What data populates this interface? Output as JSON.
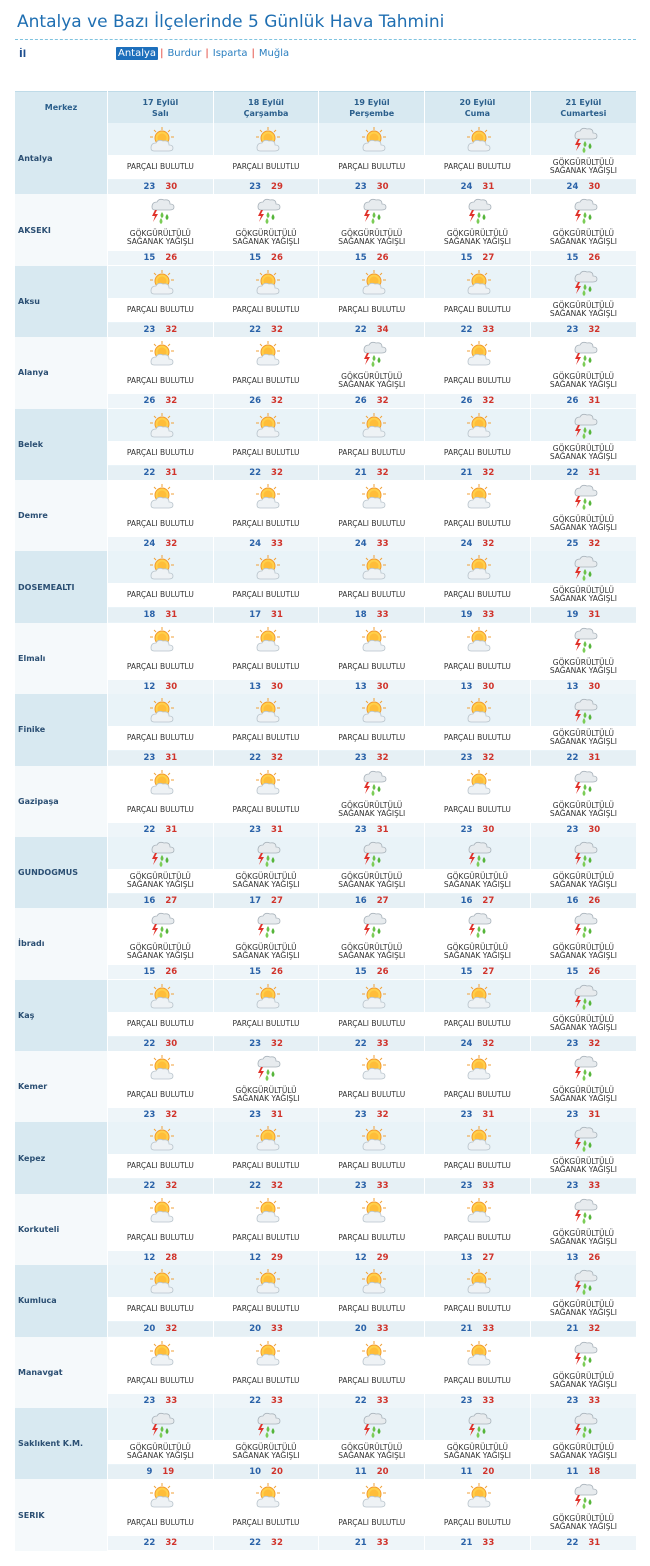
{
  "title": "Antalya ve Bazı İlçelerinde 5 Günlük Hava Tahmini",
  "il_label": "İl",
  "provinces": [
    "Antalya",
    "Burdur",
    "Isparta",
    "Muğla"
  ],
  "active_province": "Antalya",
  "colors": {
    "accent": "#1d6fbc",
    "min_temp": "#2a62a8",
    "max_temp": "#d0332b",
    "header_bg": "#d8e9f1"
  },
  "header": {
    "merkez": "Merkez",
    "days": [
      {
        "date": "17 Eylül",
        "weekday": "Salı"
      },
      {
        "date": "18 Eylül",
        "weekday": "Çarşamba"
      },
      {
        "date": "19 Eylül",
        "weekday": "Perşembe"
      },
      {
        "date": "20 Eylül",
        "weekday": "Cuma"
      },
      {
        "date": "21 Eylül",
        "weekday": "Cumartesi"
      }
    ]
  },
  "conditions": {
    "pb": {
      "icon": "partly-cloudy-icon",
      "lines": [
        "PARÇALI BULUTLU"
      ]
    },
    "gs": {
      "icon": "thunder-shower-icon",
      "lines": [
        "GÖKGÜRÜLTÜLÜ",
        "SAĞANAK YAĞIŞLI"
      ]
    }
  },
  "rows": [
    {
      "city": "Antalya",
      "days": [
        [
          "pb",
          23,
          30
        ],
        [
          "pb",
          23,
          29
        ],
        [
          "pb",
          23,
          30
        ],
        [
          "pb",
          24,
          31
        ],
        [
          "gs",
          24,
          30
        ]
      ]
    },
    {
      "city": "AKSEKI",
      "days": [
        [
          "gs",
          15,
          26
        ],
        [
          "gs",
          15,
          26
        ],
        [
          "gs",
          15,
          26
        ],
        [
          "gs",
          15,
          27
        ],
        [
          "gs",
          15,
          26
        ]
      ]
    },
    {
      "city": "Aksu",
      "days": [
        [
          "pb",
          23,
          32
        ],
        [
          "pb",
          22,
          32
        ],
        [
          "pb",
          22,
          34
        ],
        [
          "pb",
          22,
          33
        ],
        [
          "gs",
          23,
          32
        ]
      ]
    },
    {
      "city": "Alanya",
      "days": [
        [
          "pb",
          26,
          32
        ],
        [
          "pb",
          26,
          32
        ],
        [
          "gs",
          26,
          32
        ],
        [
          "pb",
          26,
          32
        ],
        [
          "gs",
          26,
          31
        ]
      ]
    },
    {
      "city": "Belek",
      "days": [
        [
          "pb",
          22,
          31
        ],
        [
          "pb",
          22,
          32
        ],
        [
          "pb",
          21,
          32
        ],
        [
          "pb",
          21,
          32
        ],
        [
          "gs",
          22,
          31
        ]
      ]
    },
    {
      "city": "Demre",
      "days": [
        [
          "pb",
          24,
          32
        ],
        [
          "pb",
          24,
          33
        ],
        [
          "pb",
          24,
          33
        ],
        [
          "pb",
          24,
          32
        ],
        [
          "gs",
          25,
          32
        ]
      ]
    },
    {
      "city": "DOSEMEALTI",
      "days": [
        [
          "pb",
          18,
          31
        ],
        [
          "pb",
          17,
          31
        ],
        [
          "pb",
          18,
          33
        ],
        [
          "pb",
          19,
          33
        ],
        [
          "gs",
          19,
          31
        ]
      ]
    },
    {
      "city": "Elmalı",
      "days": [
        [
          "pb",
          12,
          30
        ],
        [
          "pb",
          13,
          30
        ],
        [
          "pb",
          13,
          30
        ],
        [
          "pb",
          13,
          30
        ],
        [
          "gs",
          13,
          30
        ]
      ]
    },
    {
      "city": "Finike",
      "days": [
        [
          "pb",
          23,
          31
        ],
        [
          "pb",
          22,
          32
        ],
        [
          "pb",
          23,
          32
        ],
        [
          "pb",
          23,
          32
        ],
        [
          "gs",
          22,
          31
        ]
      ]
    },
    {
      "city": "Gazipaşa",
      "days": [
        [
          "pb",
          22,
          31
        ],
        [
          "pb",
          23,
          31
        ],
        [
          "gs",
          23,
          31
        ],
        [
          "pb",
          23,
          30
        ],
        [
          "gs",
          23,
          30
        ]
      ]
    },
    {
      "city": "GUNDOGMUS",
      "days": [
        [
          "gs",
          16,
          27
        ],
        [
          "gs",
          17,
          27
        ],
        [
          "gs",
          16,
          27
        ],
        [
          "gs",
          16,
          27
        ],
        [
          "gs",
          16,
          26
        ]
      ]
    },
    {
      "city": "İbradı",
      "days": [
        [
          "gs",
          15,
          26
        ],
        [
          "gs",
          15,
          26
        ],
        [
          "gs",
          15,
          26
        ],
        [
          "gs",
          15,
          27
        ],
        [
          "gs",
          15,
          26
        ]
      ]
    },
    {
      "city": "Kaş",
      "days": [
        [
          "pb",
          22,
          30
        ],
        [
          "pb",
          23,
          32
        ],
        [
          "pb",
          22,
          33
        ],
        [
          "pb",
          24,
          32
        ],
        [
          "gs",
          23,
          32
        ]
      ]
    },
    {
      "city": "Kemer",
      "days": [
        [
          "pb",
          23,
          32
        ],
        [
          "gs",
          23,
          31
        ],
        [
          "pb",
          23,
          32
        ],
        [
          "pb",
          23,
          31
        ],
        [
          "gs",
          23,
          31
        ]
      ]
    },
    {
      "city": "Kepez",
      "days": [
        [
          "pb",
          22,
          32
        ],
        [
          "pb",
          22,
          32
        ],
        [
          "pb",
          23,
          33
        ],
        [
          "pb",
          23,
          33
        ],
        [
          "gs",
          23,
          33
        ]
      ]
    },
    {
      "city": "Korkuteli",
      "days": [
        [
          "pb",
          12,
          28
        ],
        [
          "pb",
          12,
          29
        ],
        [
          "pb",
          12,
          29
        ],
        [
          "pb",
          13,
          27
        ],
        [
          "gs",
          13,
          26
        ]
      ]
    },
    {
      "city": "Kumluca",
      "days": [
        [
          "pb",
          20,
          32
        ],
        [
          "pb",
          20,
          33
        ],
        [
          "pb",
          20,
          33
        ],
        [
          "pb",
          21,
          33
        ],
        [
          "gs",
          21,
          32
        ]
      ]
    },
    {
      "city": "Manavgat",
      "days": [
        [
          "pb",
          23,
          33
        ],
        [
          "pb",
          22,
          33
        ],
        [
          "pb",
          22,
          33
        ],
        [
          "pb",
          23,
          33
        ],
        [
          "gs",
          23,
          33
        ]
      ]
    },
    {
      "city": "Saklıkent K.M.",
      "days": [
        [
          "gs",
          9,
          19
        ],
        [
          "gs",
          10,
          20
        ],
        [
          "gs",
          11,
          20
        ],
        [
          "gs",
          11,
          20
        ],
        [
          "gs",
          11,
          18
        ]
      ]
    },
    {
      "city": "SERIK",
      "days": [
        [
          "pb",
          22,
          32
        ],
        [
          "pb",
          22,
          32
        ],
        [
          "pb",
          21,
          33
        ],
        [
          "pb",
          21,
          33
        ],
        [
          "gs",
          22,
          31
        ]
      ]
    }
  ]
}
